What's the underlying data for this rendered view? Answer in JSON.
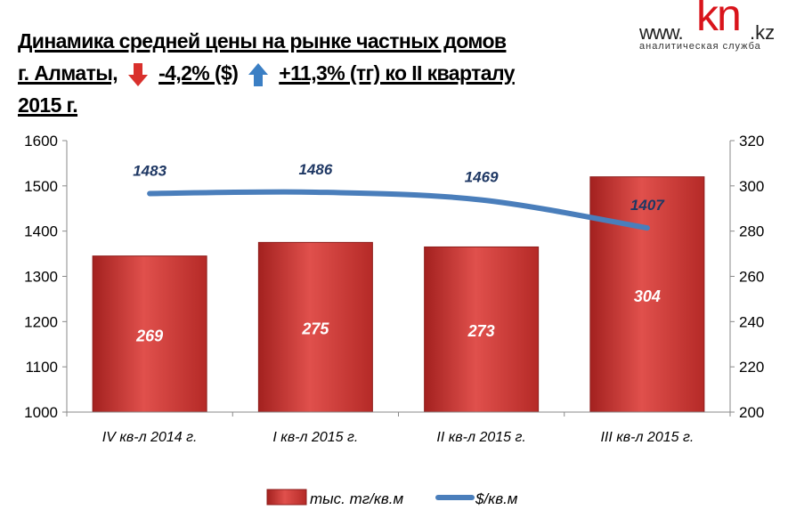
{
  "title": {
    "line1": "Динамика средней цены на рынке частных домов",
    "line2_a": "г. Алматы,",
    "line2_b": "-4,2% ($)",
    "line2_c": "+11,3% (тг) ко II кварталу",
    "line3": "2015 г.",
    "down_arrow_color": "#d9302c",
    "up_arrow_color": "#3b7fc4"
  },
  "logo": {
    "www": "www.",
    "kn": "kn",
    "kz": ".kz",
    "subtitle": "аналитическая служба"
  },
  "chart_data": {
    "type": "bar+line",
    "categories": [
      "IV кв-л 2014 г.",
      "I кв-л 2015 г.",
      "II кв-л 2015 г.",
      "III кв-л 2015 г."
    ],
    "series": [
      {
        "name": "тыс. тг/кв.м",
        "type": "bar",
        "axis": "right",
        "values": [
          269,
          275,
          273,
          304
        ],
        "color": "#c0302c"
      },
      {
        "name": "$/кв.м",
        "type": "line",
        "axis": "left",
        "values": [
          1483,
          1486,
          1469,
          1407
        ],
        "color": "#4a7ebb"
      }
    ],
    "left_axis": {
      "min": 1000,
      "max": 1600,
      "ticks": [
        "1000",
        "1100",
        "1200",
        "1300",
        "1400",
        "1500",
        "1600"
      ]
    },
    "right_axis": {
      "min": 200,
      "max": 320,
      "ticks": [
        "200",
        "220",
        "240",
        "260",
        "280",
        "300",
        "320"
      ]
    },
    "grid": false,
    "legend": "bottom"
  }
}
